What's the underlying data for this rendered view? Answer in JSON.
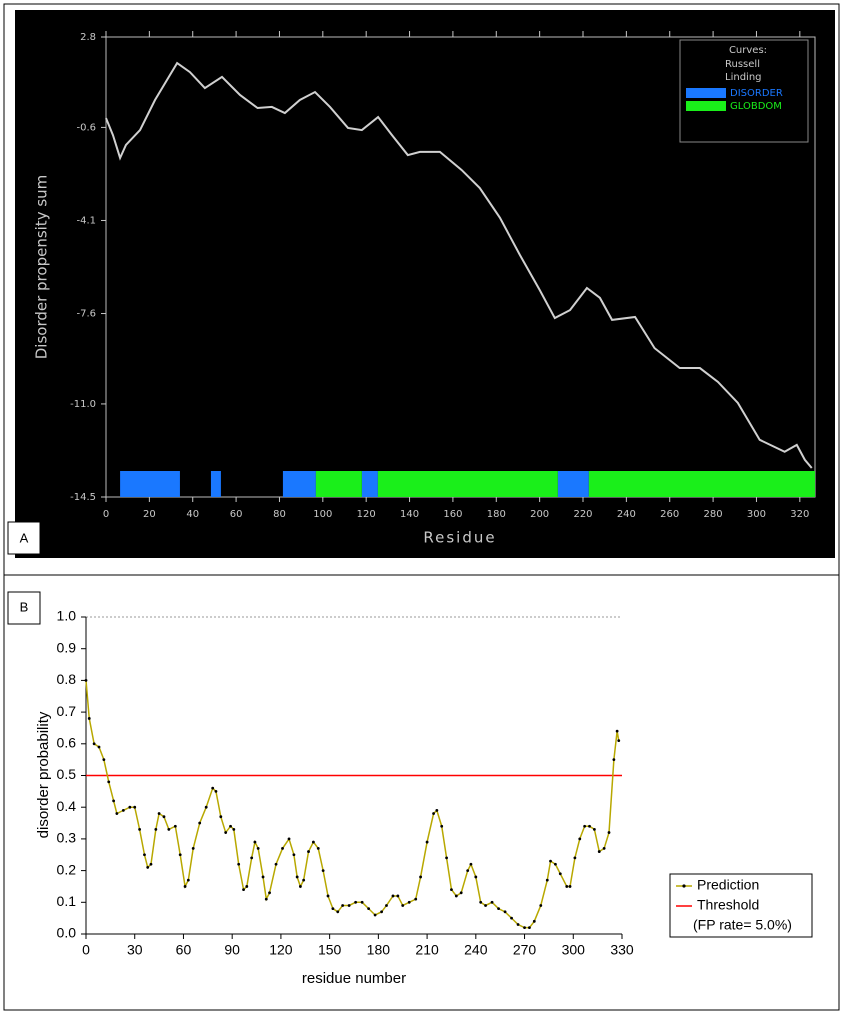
{
  "chart_data": [
    {
      "type": "line",
      "panel_label": "A",
      "xlabel": "Residue",
      "ylabel": "Disorder propensity sum",
      "xlim": [
        0,
        327
      ],
      "xticks": [
        0,
        20,
        40,
        60,
        80,
        100,
        120,
        140,
        160,
        180,
        200,
        220,
        240,
        260,
        280,
        300,
        320
      ],
      "ylim": [
        -14.5,
        2.8
      ],
      "yticks": [
        -14.5,
        {
          "value": -11,
          "label": "-11.0"
        },
        -7.6,
        -4.1,
        -0.6,
        2.8
      ],
      "x": [
        0,
        3.2,
        6.5,
        9.2,
        15.7,
        22.6,
        29.5,
        32.8,
        38.7,
        45.6,
        53.5,
        61.8,
        69.9,
        76.5,
        82.5,
        89.4,
        96.4,
        103.3,
        111.6,
        118,
        125.5,
        131.9,
        139.2,
        144.8,
        154,
        164,
        172.4,
        181.7,
        190.9,
        200,
        207,
        214,
        221.8,
        227.8,
        233.4,
        244,
        253,
        264.6,
        273.9,
        282.2,
        291.4,
        301.5,
        313,
        318.6,
        322.3,
        325.5
      ],
      "series": [
        {
          "color": "#d0d0d0",
          "values": [
            -0.25,
            -0.89,
            -1.75,
            -1.26,
            -0.7,
            0.43,
            1.37,
            1.82,
            1.48,
            0.88,
            1.3,
            0.62,
            0.13,
            0.17,
            -0.06,
            0.43,
            0.73,
            0.17,
            -0.62,
            -0.7,
            -0.21,
            -0.89,
            -1.64,
            -1.52,
            -1.52,
            -2.2,
            -2.88,
            -4.0,
            -5.4,
            -6.71,
            -7.77,
            -7.47,
            -6.64,
            -7.01,
            -7.84,
            -7.73,
            -8.9,
            -9.65,
            -9.65,
            -10.17,
            -10.96,
            -12.35,
            -12.8,
            -12.54,
            -13.1,
            -13.41
          ]
        }
      ],
      "legend_title": "Curves:",
      "legend_extra": [
        "Russell",
        "Linding"
      ],
      "regions": [
        {
          "name": "DISORDER",
          "color": "#1a78ff",
          "ranges": [
            [
              6.5,
              34.1
            ],
            [
              48.4,
              53
            ],
            [
              81.6,
              96.8
            ],
            [
              118,
              125.4
            ],
            [
              208.4,
              222.7
            ]
          ]
        },
        {
          "name": "GLOBDOM",
          "color": "#1aef1a",
          "ranges": [
            [
              96.8,
              118
            ],
            [
              125.4,
              208.4
            ],
            [
              222.7,
              327
            ]
          ]
        }
      ]
    },
    {
      "type": "line",
      "panel_label": "B",
      "xlabel": "residue number",
      "ylabel": "disorder probability",
      "xlim": [
        0,
        330
      ],
      "xticks": [
        0,
        30,
        60,
        90,
        120,
        150,
        180,
        210,
        240,
        270,
        300,
        330
      ],
      "ylim": [
        0,
        1
      ],
      "yticks": [
        {
          "value": 0,
          "label": "0.0"
        },
        0.1,
        0.2,
        0.3,
        0.4,
        0.5,
        0.6,
        0.7,
        0.8,
        0.9,
        {
          "value": 1,
          "label": "1.0"
        }
      ],
      "x": [
        0,
        2,
        5,
        8,
        11,
        14,
        17,
        19,
        23,
        27,
        30,
        33,
        36,
        38,
        40,
        43,
        45,
        48,
        51,
        55,
        58,
        61,
        63,
        66,
        70,
        74,
        78,
        80,
        83,
        86,
        89,
        91,
        94,
        97,
        99,
        102,
        104,
        106,
        109,
        111,
        113,
        117,
        121,
        125,
        128,
        130,
        132,
        134,
        137,
        140,
        143,
        146,
        149,
        152,
        155,
        158,
        162,
        166,
        170,
        174,
        178,
        182,
        185,
        189,
        192,
        195,
        199,
        203,
        206,
        210,
        214,
        216,
        219,
        222,
        225,
        228,
        231,
        235,
        237,
        240,
        243,
        246,
        250,
        254,
        258,
        262,
        266,
        270,
        273,
        276,
        280,
        284,
        286,
        289,
        292,
        296,
        298,
        301,
        304,
        307,
        310,
        313,
        316,
        319,
        322,
        325,
        327,
        328
      ],
      "series": [
        {
          "name": "Prediction",
          "color": "#000000",
          "line_color": "#b8a800",
          "values": [
            0.8,
            0.68,
            0.6,
            0.59,
            0.55,
            0.48,
            0.42,
            0.38,
            0.39,
            0.4,
            0.4,
            0.33,
            0.25,
            0.21,
            0.22,
            0.33,
            0.38,
            0.37,
            0.33,
            0.34,
            0.25,
            0.15,
            0.17,
            0.27,
            0.35,
            0.4,
            0.46,
            0.45,
            0.37,
            0.32,
            0.34,
            0.33,
            0.22,
            0.14,
            0.15,
            0.24,
            0.29,
            0.27,
            0.18,
            0.11,
            0.13,
            0.22,
            0.27,
            0.3,
            0.25,
            0.18,
            0.15,
            0.17,
            0.26,
            0.29,
            0.27,
            0.2,
            0.12,
            0.08,
            0.07,
            0.09,
            0.09,
            0.1,
            0.1,
            0.08,
            0.06,
            0.07,
            0.09,
            0.12,
            0.12,
            0.09,
            0.1,
            0.11,
            0.18,
            0.29,
            0.38,
            0.39,
            0.34,
            0.24,
            0.14,
            0.12,
            0.13,
            0.2,
            0.22,
            0.18,
            0.1,
            0.09,
            0.1,
            0.08,
            0.07,
            0.05,
            0.03,
            0.02,
            0.02,
            0.04,
            0.09,
            0.17,
            0.23,
            0.22,
            0.19,
            0.15,
            0.15,
            0.24,
            0.3,
            0.34,
            0.34,
            0.33,
            0.26,
            0.27,
            0.32,
            0.55,
            0.64,
            0.61
          ]
        }
      ],
      "reference_lines": [
        {
          "name": "Threshold",
          "value": 0.5,
          "color": "#ff0000",
          "description": "(FP rate= 5.0%)"
        }
      ]
    }
  ]
}
